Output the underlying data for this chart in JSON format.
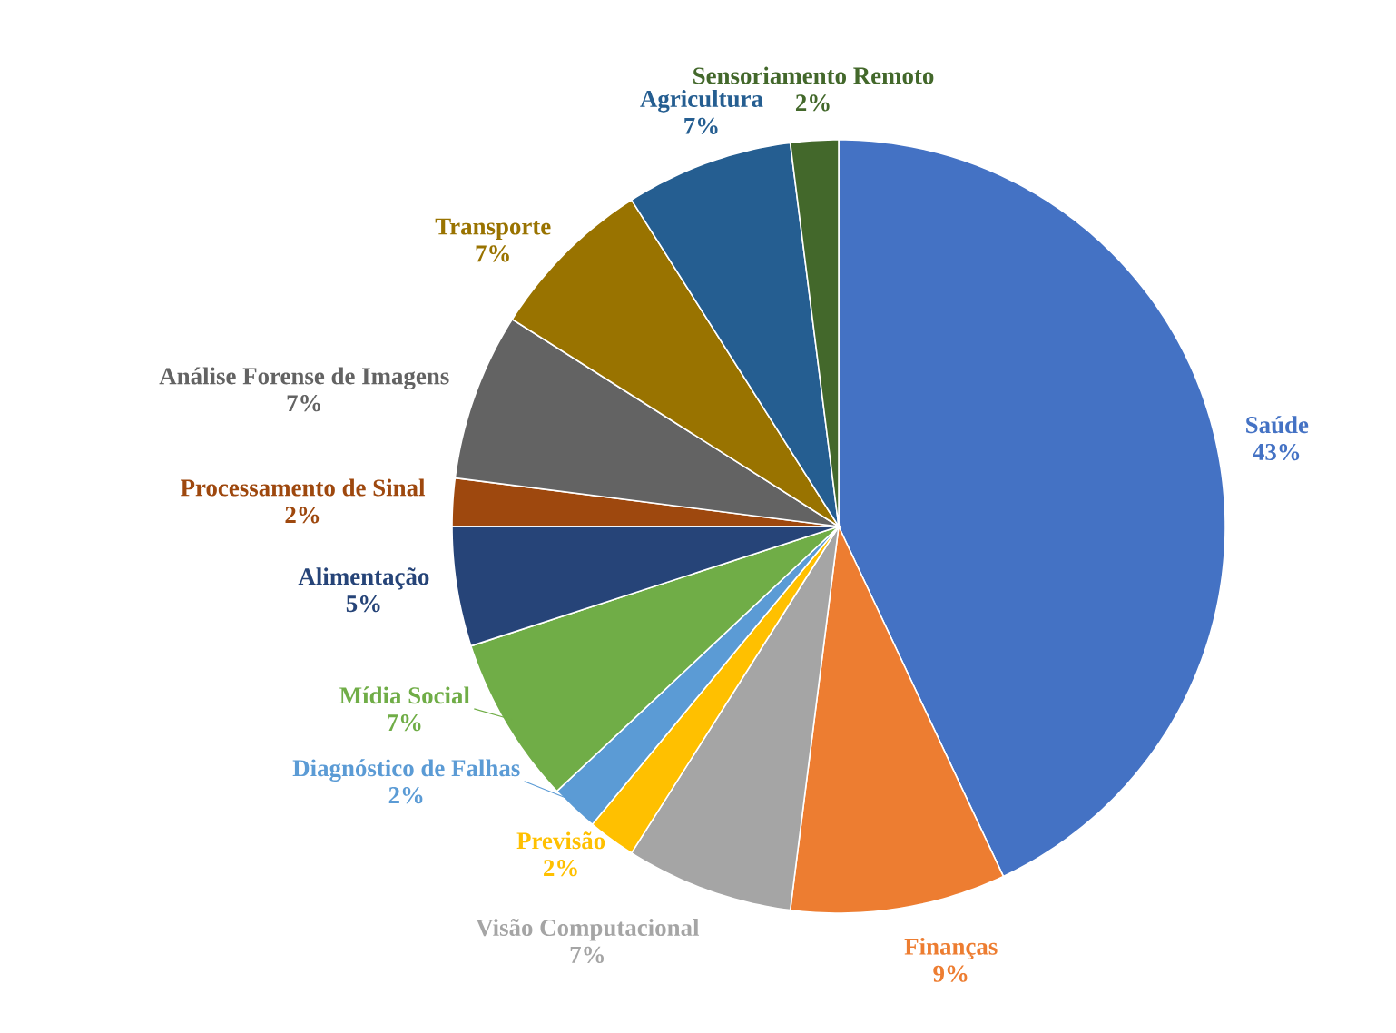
{
  "chart_data": {
    "type": "pie",
    "categories": [
      "Saúde",
      "Finanças",
      "Visão Computacional",
      "Previsão",
      "Diagnóstico de Falhas",
      "Mídia Social",
      "Alimentação",
      "Processamento de Sinal",
      "Análise Forense de Imagens",
      "Transporte",
      "Agricultura",
      "Sensoriamento Remoto"
    ],
    "values": [
      43,
      9,
      7,
      2,
      2,
      7,
      5,
      2,
      7,
      7,
      7,
      2
    ],
    "colors": [
      "#4472c4",
      "#ed7d31",
      "#a5a5a5",
      "#ffc000",
      "#5b9bd5",
      "#70ad47",
      "#264478",
      "#9e480e",
      "#636363",
      "#997300",
      "#255e91",
      "#43682b"
    ],
    "value_labels": [
      "43%",
      "9%",
      "7%",
      "2%",
      "2%",
      "7%",
      "5%",
      "2%",
      "7%",
      "7%",
      "7%",
      "2%"
    ]
  }
}
